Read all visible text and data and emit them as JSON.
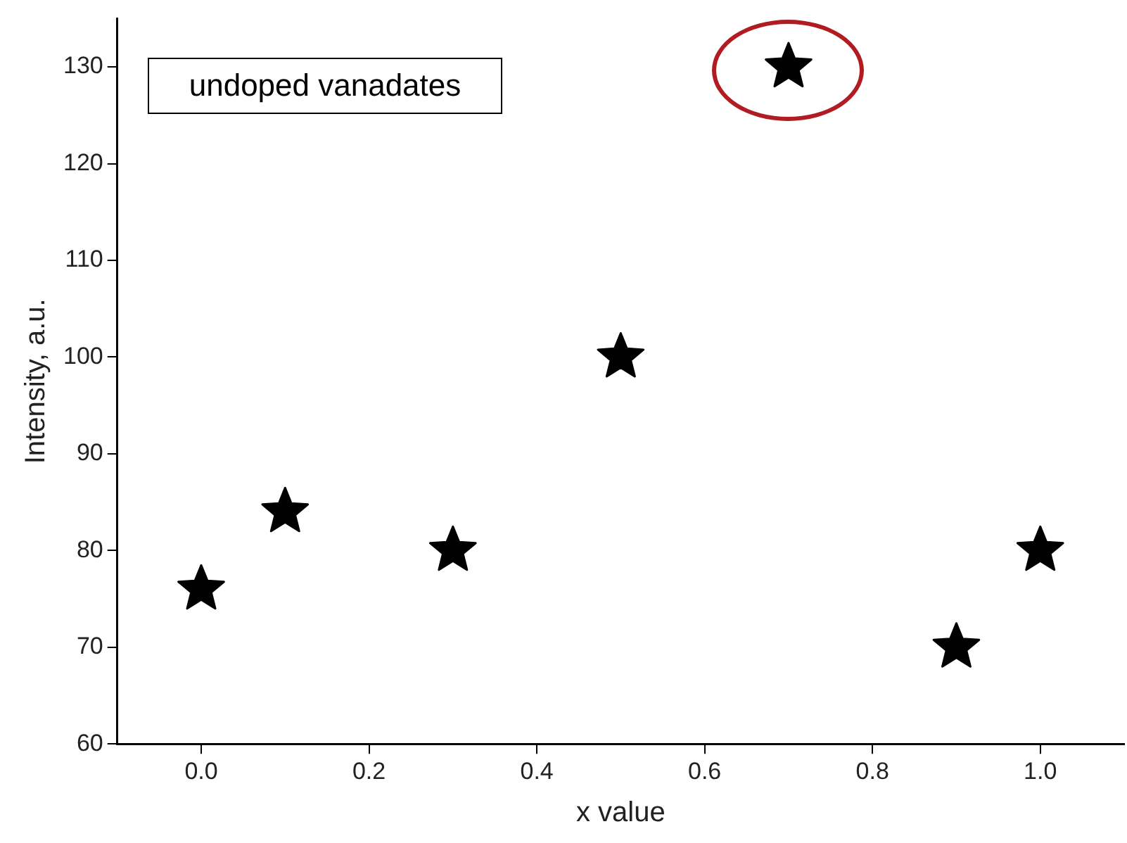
{
  "chart_data": {
    "type": "scatter",
    "xlabel": "x value",
    "ylabel": "Intensity, a.u.",
    "annotations": [
      "undoped vanadates"
    ],
    "x": [
      0.0,
      0.1,
      0.3,
      0.5,
      0.7,
      0.9,
      1.0
    ],
    "series": [
      {
        "color": "#000000",
        "values": [
          76,
          84,
          80,
          100,
          130,
          70,
          80
        ]
      }
    ],
    "xlim": [
      -0.1,
      1.1
    ],
    "xticks": [
      {
        "value": 0,
        "label": "0.0"
      },
      0.2,
      0.4,
      0.6,
      0.8,
      {
        "value": 1,
        "label": "1.0"
      }
    ],
    "ylim": [
      60,
      135
    ],
    "yticks": [
      60,
      70,
      80,
      90,
      100,
      110,
      120,
      130
    ],
    "marker": "star",
    "grid": false,
    "legend": false
  }
}
